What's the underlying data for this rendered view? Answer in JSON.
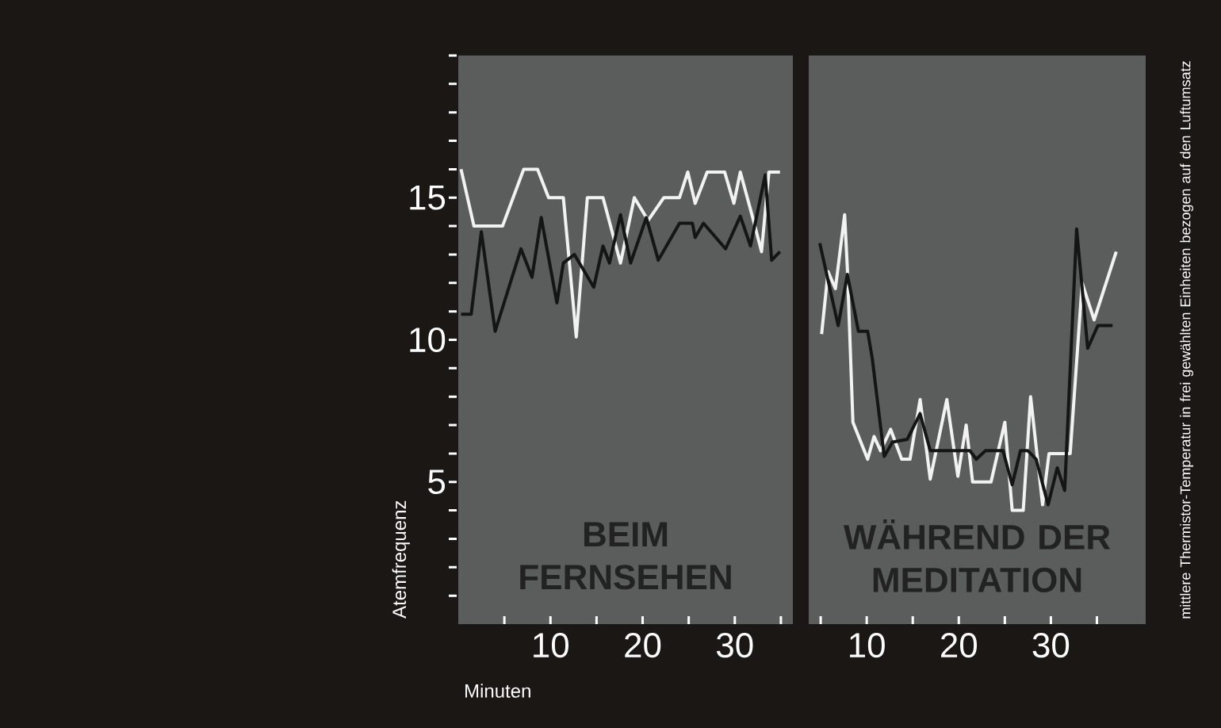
{
  "chart_data": [
    {
      "type": "line",
      "xlabel": "Minuten",
      "ylabel": "Atemfrequenz",
      "xlim": [
        0,
        36.3
      ],
      "xticks": [
        {
          "value": 5,
          "label": null
        },
        10,
        {
          "value": 15,
          "label": null
        },
        20,
        {
          "value": 25,
          "label": null
        },
        30,
        {
          "value": 35,
          "label": null
        }
      ],
      "ylim": [
        0,
        20
      ],
      "yticks": [
        {
          "value": 1,
          "label": null
        },
        {
          "value": 2,
          "label": null
        },
        {
          "value": 3,
          "label": null
        },
        {
          "value": 4,
          "label": null
        },
        5,
        {
          "value": 6,
          "label": null
        },
        {
          "value": 7,
          "label": null
        },
        {
          "value": 8,
          "label": null
        },
        {
          "value": 9,
          "label": null
        },
        10,
        {
          "value": 11,
          "label": null
        },
        {
          "value": 12,
          "label": null
        },
        {
          "value": 13,
          "label": null
        },
        {
          "value": 14,
          "label": null
        },
        15,
        {
          "value": 16,
          "label": null
        },
        {
          "value": 17,
          "label": null
        },
        {
          "value": 18,
          "label": null
        },
        {
          "value": 19,
          "label": null
        },
        {
          "value": 20,
          "label": null
        }
      ],
      "series": [
        {
          "color": "#f2f2f2",
          "x": [
            0.3,
            1.7,
            4.8,
            7.1,
            8.6,
            9.8,
            11.4,
            12.8,
            14.0,
            15.7,
            17.6,
            19.1,
            20.6,
            22.3,
            24.0,
            24.9,
            25.7,
            27.0,
            28.9,
            29.9,
            30.6,
            31.9,
            32.9,
            33.7,
            34.9
          ],
          "values": [
            16,
            14,
            14,
            16,
            16,
            15,
            15,
            10.1,
            15,
            15,
            12.7,
            15,
            14.2,
            15,
            15,
            15.9,
            14.8,
            15.9,
            15.9,
            14.8,
            15.9,
            14.35,
            13.1,
            15.9,
            15.9
          ]
        },
        {
          "color": "#151515",
          "x": [
            0.3,
            1.4,
            2.5,
            4.0,
            6.8,
            8.0,
            9.0,
            10.7,
            11.4,
            12.6,
            14.7,
            15.7,
            16.4,
            17.6,
            18.7,
            20.4,
            21.7,
            24.0,
            25.4,
            25.7,
            26.6,
            29.0,
            30.6,
            31.7,
            33.3,
            34.0,
            34.9
          ],
          "values": [
            10.9,
            10.9,
            13.8,
            10.3,
            13.2,
            12.2,
            14.3,
            11.3,
            12.7,
            13.0,
            11.85,
            13.3,
            12.7,
            14.4,
            12.7,
            14.3,
            12.8,
            14.1,
            14.1,
            13.6,
            14.1,
            13.2,
            14.35,
            13.3,
            15.8,
            12.8,
            13.1
          ]
        }
      ],
      "annotations": [
        "BEIM FERNSEHEN"
      ]
    },
    {
      "type": "line",
      "y2label": "mittlere Thermistor-Temperatur in frei gewählten Einheiten bezogen auf den Luftumsatz",
      "xlim": [
        3.7,
        40.3
      ],
      "xticks": [
        {
          "value": 5,
          "label": null
        },
        10,
        {
          "value": 15,
          "label": null
        },
        20,
        {
          "value": 25,
          "label": null
        },
        30,
        {
          "value": 35,
          "label": null
        }
      ],
      "ylim": [
        0,
        20
      ],
      "tick_labels": "x",
      "series": [
        {
          "color": "#f2f2f2",
          "x": [
            5.1,
            5.8,
            6.6,
            7.6,
            7.9,
            8.5,
            10.1,
            10.8,
            11.5,
            12.6,
            13.8,
            14.7,
            15.8,
            16.9,
            18.7,
            19.9,
            20.8,
            21.5,
            23.5,
            25.0,
            25.8,
            27.0,
            27.8,
            29.1,
            29.8,
            31.2,
            32.1,
            33.4,
            34.7,
            37.1
          ],
          "values": [
            10.2,
            12.4,
            11.8,
            14.4,
            12.5,
            7.1,
            5.8,
            6.6,
            6.1,
            6.85,
            5.8,
            5.8,
            7.9,
            5.1,
            7.9,
            5.2,
            7.0,
            5.0,
            5.0,
            7.1,
            4.0,
            4.0,
            8.0,
            4.2,
            6.0,
            6.0,
            6.0,
            12.0,
            10.7,
            13.1
          ]
        },
        {
          "color": "#151515",
          "x": [
            4.9,
            6.9,
            7.9,
            9.1,
            10.1,
            10.6,
            11.9,
            12.8,
            14.4,
            15.8,
            16.9,
            21.2,
            21.9,
            22.9,
            24.8,
            25.8,
            26.7,
            27.5,
            28.4,
            29.7,
            30.7,
            31.5,
            32.8,
            34.0,
            35.1,
            36.7
          ],
          "values": [
            13.4,
            10.5,
            12.3,
            10.3,
            10.3,
            9.35,
            5.9,
            6.4,
            6.5,
            7.4,
            6.1,
            6.1,
            5.8,
            6.1,
            6.1,
            4.9,
            6.1,
            6.1,
            5.8,
            4.2,
            5.5,
            4.7,
            13.9,
            9.7,
            10.5,
            10.5
          ]
        }
      ],
      "annotations": [
        "WÄHREND DER MEDITATION"
      ]
    }
  ]
}
